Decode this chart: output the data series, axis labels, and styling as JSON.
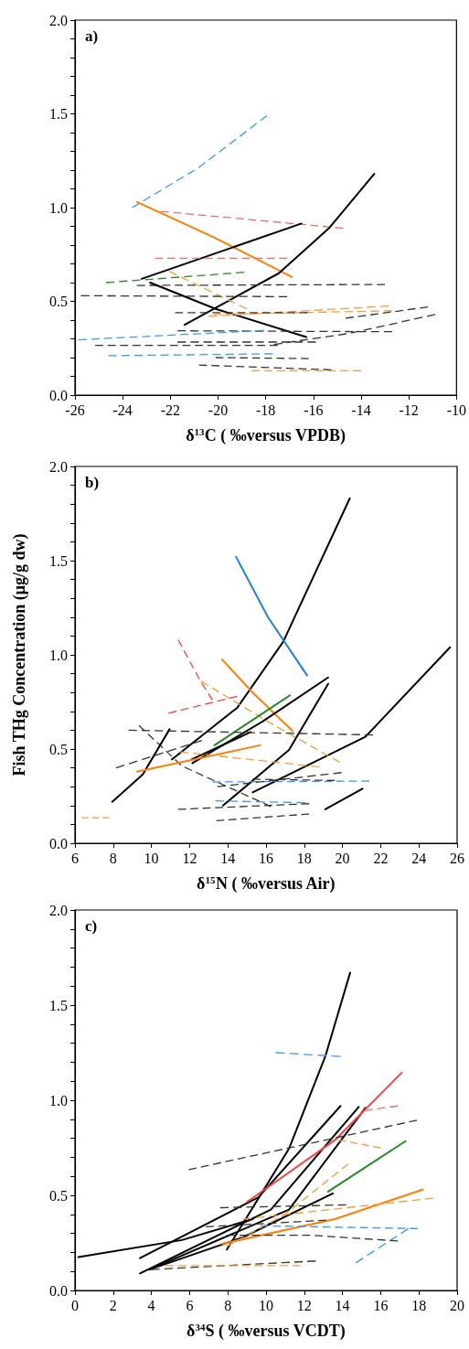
{
  "chart_data": [
    {
      "type": "line",
      "title": "a)",
      "xlabel": "δ$^{13}$C ( ‰versus VPDB)",
      "xlim": [
        -26,
        -10
      ],
      "xticks": [
        -26,
        -24,
        -22,
        -20,
        -18,
        -16,
        -14,
        -12,
        -10
      ],
      "ylim": [
        0,
        2
      ],
      "yticks": [
        {
          "value": 0,
          "label": "0.0"
        },
        {
          "value": 0.1,
          "label": null
        },
        {
          "value": 0.2,
          "label": null
        },
        {
          "value": 0.3,
          "label": null
        },
        {
          "value": 0.4,
          "label": null
        },
        {
          "value": 0.5,
          "label": "0.5"
        },
        {
          "value": 0.6,
          "label": null
        },
        {
          "value": 0.7,
          "label": null
        },
        {
          "value": 0.8,
          "label": null
        },
        {
          "value": 0.9,
          "label": null
        },
        {
          "value": 1,
          "label": "1.0"
        },
        {
          "value": 1.1,
          "label": null
        },
        {
          "value": 1.2,
          "label": null
        },
        {
          "value": 1.3,
          "label": null
        },
        {
          "value": 1.4,
          "label": null
        },
        {
          "value": 1.5,
          "label": "1.5"
        },
        {
          "value": 1.6,
          "label": null
        },
        {
          "value": 1.7,
          "label": null
        },
        {
          "value": 1.8,
          "label": null
        },
        {
          "value": 1.9,
          "label": null
        },
        {
          "value": 2,
          "label": "2.0"
        }
      ],
      "grid": false,
      "marker": "none",
      "line_style": "dashed",
      "series": [
        {
          "color": "#3399ff",
          "x": [
            -23.6,
            -20.85,
            -17.95
          ],
          "values": [
            1.0,
            1.21,
            1.49
          ]
        },
        {
          "color": "#ff7f00",
          "line_style": "solid",
          "x": [
            -23.4,
            -20.15,
            -16.9
          ],
          "values": [
            1.03,
            0.84,
            0.63
          ]
        },
        {
          "color": "#ff6666",
          "x": [
            -22.4,
            -14.75
          ],
          "values": [
            0.98,
            0.89
          ]
        },
        {
          "color": "#000000",
          "line_style": "solid",
          "x": [
            -23.2,
            -16.5
          ],
          "values": [
            0.62,
            0.915
          ]
        },
        {
          "color": "#000000",
          "line_style": "solid",
          "x": [
            -21.4,
            -17.45,
            -15.35,
            -13.45
          ],
          "values": [
            0.375,
            0.65,
            0.89,
            1.18
          ]
        },
        {
          "color": "#ff6666",
          "x": [
            -22.65,
            -17.1
          ],
          "values": [
            0.73,
            0.73
          ]
        },
        {
          "color": "#228b22",
          "x": [
            -24.7,
            -18.9
          ],
          "values": [
            0.6,
            0.655
          ]
        },
        {
          "color": "#ff9933",
          "x": [
            -22.05,
            -18.8
          ],
          "values": [
            0.66,
            0.46
          ]
        },
        {
          "color": "#333333",
          "x": [
            -23.4,
            -13.0
          ],
          "values": [
            0.585,
            0.59
          ]
        },
        {
          "color": "#333333",
          "x": [
            -25.75,
            -17.1
          ],
          "values": [
            0.53,
            0.525
          ]
        },
        {
          "color": "#000000",
          "line_style": "solid",
          "x": [
            -22.85,
            -20.1,
            -16.3
          ],
          "values": [
            0.6,
            0.46,
            0.31
          ]
        },
        {
          "color": "#ff9933",
          "x": [
            -20.4,
            -12.85
          ],
          "values": [
            0.42,
            0.475
          ]
        },
        {
          "color": "#ff9933",
          "x": [
            -20.2,
            -12.7
          ],
          "values": [
            0.43,
            0.45
          ]
        },
        {
          "color": "#333333",
          "x": [
            -21.8,
            -16.25
          ],
          "values": [
            0.44,
            0.44
          ]
        },
        {
          "color": "#333333",
          "x": [
            -14.65,
            -11.2
          ],
          "values": [
            0.41,
            0.47
          ]
        },
        {
          "color": "#333333",
          "x": [
            -21.7,
            -12.7
          ],
          "values": [
            0.343,
            0.338
          ]
        },
        {
          "color": "#3399ff",
          "x": [
            -25.85,
            -18.05
          ],
          "values": [
            0.295,
            0.345
          ]
        },
        {
          "color": "#333333",
          "x": [
            -21.7,
            -15.9
          ],
          "values": [
            0.283,
            0.283
          ]
        },
        {
          "color": "#333333",
          "x": [
            -17.65,
            -14.45,
            -10.9
          ],
          "values": [
            0.27,
            0.33,
            0.43
          ]
        },
        {
          "color": "#333333",
          "x": [
            -25.15,
            -17.5
          ],
          "values": [
            0.265,
            0.265
          ]
        },
        {
          "color": "#3399ff",
          "x": [
            -24.6,
            -17.7
          ],
          "values": [
            0.21,
            0.22
          ]
        },
        {
          "color": "#333333",
          "x": [
            -20.1,
            -16.2
          ],
          "values": [
            0.2,
            0.195
          ]
        },
        {
          "color": "#333333",
          "x": [
            -20.8,
            -15.25
          ],
          "values": [
            0.16,
            0.135
          ]
        },
        {
          "color": "#ff9933",
          "x": [
            -18.6,
            -14.0
          ],
          "values": [
            0.13,
            0.13
          ]
        }
      ]
    },
    {
      "type": "line",
      "title": "b)",
      "xlabel": "δ$^{15}$N ( ‰versus Air)",
      "ylabel": "Fish THg Concentration (μg/g dw)",
      "xlim": [
        6,
        26
      ],
      "xticks": [
        6,
        8,
        10,
        12,
        14,
        16,
        18,
        20,
        22,
        24,
        26
      ],
      "ylim": [
        0,
        2
      ],
      "yticks": [
        {
          "value": 0,
          "label": "0.0"
        },
        {
          "value": 0.1,
          "label": null
        },
        {
          "value": 0.2,
          "label": null
        },
        {
          "value": 0.3,
          "label": null
        },
        {
          "value": 0.4,
          "label": null
        },
        {
          "value": 0.5,
          "label": "0.5"
        },
        {
          "value": 0.6,
          "label": null
        },
        {
          "value": 0.7,
          "label": null
        },
        {
          "value": 0.8,
          "label": null
        },
        {
          "value": 0.9,
          "label": null
        },
        {
          "value": 1,
          "label": "1.0"
        },
        {
          "value": 1.1,
          "label": null
        },
        {
          "value": 1.2,
          "label": null
        },
        {
          "value": 1.3,
          "label": null
        },
        {
          "value": 1.4,
          "label": null
        },
        {
          "value": 1.5,
          "label": "1.5"
        },
        {
          "value": 1.6,
          "label": null
        },
        {
          "value": 1.7,
          "label": null
        },
        {
          "value": 1.8,
          "label": null
        },
        {
          "value": 1.9,
          "label": null
        },
        {
          "value": 2,
          "label": "2.0"
        }
      ],
      "grid": false,
      "marker": "none",
      "line_style": "dashed",
      "series": [
        {
          "color": "#000000",
          "line_style": "solid",
          "x": [
            11.08,
            14.5,
            16.9,
            20.38
          ],
          "values": [
            0.445,
            0.72,
            1.07,
            1.83
          ]
        },
        {
          "color": "#1f7fe0",
          "line_style": "solid",
          "x": [
            14.43,
            16.1,
            18.15
          ],
          "values": [
            1.52,
            1.2,
            0.89
          ]
        },
        {
          "color": "#000000",
          "line_style": "solid",
          "x": [
            15.3,
            21.2,
            25.63
          ],
          "values": [
            0.27,
            0.565,
            1.04
          ]
        },
        {
          "color": "#ff4040",
          "x": [
            11.4,
            12.6,
            13.2
          ],
          "values": [
            1.08,
            0.855,
            0.76
          ]
        },
        {
          "color": "#ff4040",
          "x": [
            10.9,
            14.5
          ],
          "values": [
            0.69,
            0.78
          ]
        },
        {
          "color": "#ff7f00",
          "line_style": "solid",
          "x": [
            13.7,
            15.3,
            17.4
          ],
          "values": [
            0.975,
            0.8,
            0.595
          ]
        },
        {
          "color": "#ff9933",
          "x": [
            12.6,
            16.1,
            19.85
          ],
          "values": [
            0.86,
            0.645,
            0.43
          ]
        },
        {
          "color": "#228b22",
          "line_style": "solid",
          "x": [
            13.3,
            17.25
          ],
          "values": [
            0.52,
            0.785
          ]
        },
        {
          "color": "#000000",
          "line_style": "solid",
          "x": [
            12.15,
            15.8,
            19.25
          ],
          "values": [
            0.425,
            0.645,
            0.88
          ]
        },
        {
          "color": "#000000",
          "line_style": "solid",
          "x": [
            12.1,
            15.2
          ],
          "values": [
            0.445,
            0.59
          ]
        },
        {
          "color": "#000000",
          "line_style": "solid",
          "x": [
            13.75,
            17.2,
            19.25
          ],
          "values": [
            0.2,
            0.495,
            0.846
          ]
        },
        {
          "color": "#333333",
          "x": [
            8.8,
            21.6
          ],
          "values": [
            0.6,
            0.575
          ]
        },
        {
          "color": "#333333",
          "x": [
            9.35,
            11.6,
            16.25
          ],
          "values": [
            0.625,
            0.41,
            0.195
          ]
        },
        {
          "color": "#333333",
          "x": [
            8.15,
            12.65
          ],
          "values": [
            0.4,
            0.545
          ]
        },
        {
          "color": "#000000",
          "line_style": "solid",
          "x": [
            7.95,
            9.55,
            10.95
          ],
          "values": [
            0.22,
            0.365,
            0.605
          ]
        },
        {
          "color": "#ff7f00",
          "line_style": "solid",
          "x": [
            9.25,
            15.7
          ],
          "values": [
            0.38,
            0.52
          ]
        },
        {
          "color": "#ff9933",
          "x": [
            11.5,
            18.8
          ],
          "values": [
            0.485,
            0.405
          ]
        },
        {
          "color": "#3399ff",
          "x": [
            13.2,
            21.4
          ],
          "values": [
            0.325,
            0.33
          ]
        },
        {
          "color": "#333333",
          "x": [
            13.45,
            19.95
          ],
          "values": [
            0.3,
            0.375
          ]
        },
        {
          "color": "#333333",
          "x": [
            15.3,
            19.6
          ],
          "values": [
            0.34,
            0.333
          ]
        },
        {
          "color": "#3399ff",
          "x": [
            13.35,
            18.05
          ],
          "values": [
            0.225,
            0.215
          ]
        },
        {
          "color": "#333333",
          "x": [
            11.4,
            18.25
          ],
          "values": [
            0.18,
            0.21
          ]
        },
        {
          "color": "#333333",
          "x": [
            13.4,
            18.25
          ],
          "values": [
            0.12,
            0.155
          ]
        },
        {
          "color": "#000000",
          "line_style": "solid",
          "x": [
            19.1,
            21.05
          ],
          "values": [
            0.18,
            0.29
          ]
        },
        {
          "color": "#ff9933",
          "x": [
            6.35,
            7.8
          ],
          "values": [
            0.135,
            0.135
          ]
        }
      ]
    },
    {
      "type": "line",
      "title": "c)",
      "xlabel": "δ$^{34}$S ( ‰versus VCDT)",
      "xlim": [
        0,
        20
      ],
      "xticks": [
        0,
        2,
        4,
        6,
        8,
        10,
        12,
        14,
        16,
        18,
        20
      ],
      "ylim": [
        0,
        2
      ],
      "yticks": [
        {
          "value": 0,
          "label": "0.0"
        },
        {
          "value": 0.1,
          "label": null
        },
        {
          "value": 0.2,
          "label": null
        },
        {
          "value": 0.3,
          "label": null
        },
        {
          "value": 0.4,
          "label": null
        },
        {
          "value": 0.5,
          "label": "0.5"
        },
        {
          "value": 0.6,
          "label": null
        },
        {
          "value": 0.7,
          "label": null
        },
        {
          "value": 0.8,
          "label": null
        },
        {
          "value": 0.9,
          "label": null
        },
        {
          "value": 1,
          "label": "1.0"
        },
        {
          "value": 1.1,
          "label": null
        },
        {
          "value": 1.2,
          "label": null
        },
        {
          "value": 1.3,
          "label": null
        },
        {
          "value": 1.4,
          "label": null
        },
        {
          "value": 1.5,
          "label": "1.5"
        },
        {
          "value": 1.6,
          "label": null
        },
        {
          "value": 1.7,
          "label": null
        },
        {
          "value": 1.8,
          "label": null
        },
        {
          "value": 1.9,
          "label": null
        },
        {
          "value": 2,
          "label": "2.0"
        }
      ],
      "grid": false,
      "marker": "none",
      "line_style": "dashed",
      "series": [
        {
          "color": "#000000",
          "line_style": "solid",
          "x": [
            7.95,
            11.2,
            13.1,
            14.4
          ],
          "values": [
            0.215,
            0.745,
            1.23,
            1.67
          ]
        },
        {
          "color": "#000000",
          "line_style": "solid",
          "x": [
            3.4,
            9.6,
            13.9
          ],
          "values": [
            0.17,
            0.49,
            0.97
          ]
        },
        {
          "color": "#000000",
          "line_style": "solid",
          "x": [
            3.4,
            10.25,
            14.85
          ],
          "values": [
            0.09,
            0.425,
            0.965
          ]
        },
        {
          "color": "#000000",
          "line_style": "solid",
          "x": [
            0.18,
            5.6,
            9.3
          ],
          "values": [
            0.175,
            0.265,
            0.375
          ]
        },
        {
          "color": "#000000",
          "line_style": "solid",
          "x": [
            3.9,
            11.2,
            15.2
          ],
          "values": [
            0.11,
            0.425,
            0.96
          ]
        },
        {
          "color": "#000000",
          "line_style": "solid",
          "x": [
            3.9,
            8.8,
            13.5
          ],
          "values": [
            0.11,
            0.28,
            0.51
          ]
        },
        {
          "color": "#ff4040",
          "line_style": "solid",
          "x": [
            9.0,
            13.6,
            17.1
          ],
          "values": [
            0.465,
            0.79,
            1.145
          ]
        },
        {
          "color": "#228b22",
          "line_style": "solid",
          "x": [
            13.25,
            17.3
          ],
          "values": [
            0.52,
            0.785
          ]
        },
        {
          "color": "#ff7f00",
          "line_style": "solid",
          "x": [
            7.7,
            13.6,
            18.2
          ],
          "values": [
            0.245,
            0.375,
            0.53
          ]
        },
        {
          "color": "#ff9933",
          "x": [
            7.9,
            11.0,
            14.3
          ],
          "values": [
            0.23,
            0.4,
            0.665
          ]
        },
        {
          "color": "#ff9933",
          "x": [
            8.8,
            18.75
          ],
          "values": [
            0.375,
            0.485
          ]
        },
        {
          "color": "#ff9933",
          "x": [
            13.8,
            16.0
          ],
          "values": [
            0.79,
            0.75
          ]
        },
        {
          "color": "#333333",
          "x": [
            5.95,
            17.9
          ],
          "values": [
            0.635,
            0.895
          ]
        },
        {
          "color": "#ff6666",
          "x": [
            15.15,
            16.9
          ],
          "values": [
            0.945,
            0.97
          ]
        },
        {
          "color": "#3399ff",
          "x": [
            10.5,
            13.9
          ],
          "values": [
            1.25,
            1.23
          ]
        },
        {
          "color": "#333333",
          "x": [
            7.6,
            14.2
          ],
          "values": [
            0.435,
            0.45
          ]
        },
        {
          "color": "#333333",
          "x": [
            6.85,
            13.15
          ],
          "values": [
            0.335,
            0.37
          ]
        },
        {
          "color": "#3399ff",
          "x": [
            9.7,
            17.95
          ],
          "values": [
            0.34,
            0.325
          ]
        },
        {
          "color": "#3399ff",
          "x": [
            14.7,
            17.45
          ],
          "values": [
            0.145,
            0.325
          ]
        },
        {
          "color": "#333333",
          "x": [
            7.95,
            12.4,
            16.9
          ],
          "values": [
            0.29,
            0.29,
            0.26
          ]
        },
        {
          "color": "#333333",
          "x": [
            4.0,
            12.6
          ],
          "values": [
            0.11,
            0.155
          ]
        },
        {
          "color": "#ff9933",
          "x": [
            4.75,
            11.8
          ],
          "values": [
            0.13,
            0.13
          ]
        }
      ]
    }
  ]
}
